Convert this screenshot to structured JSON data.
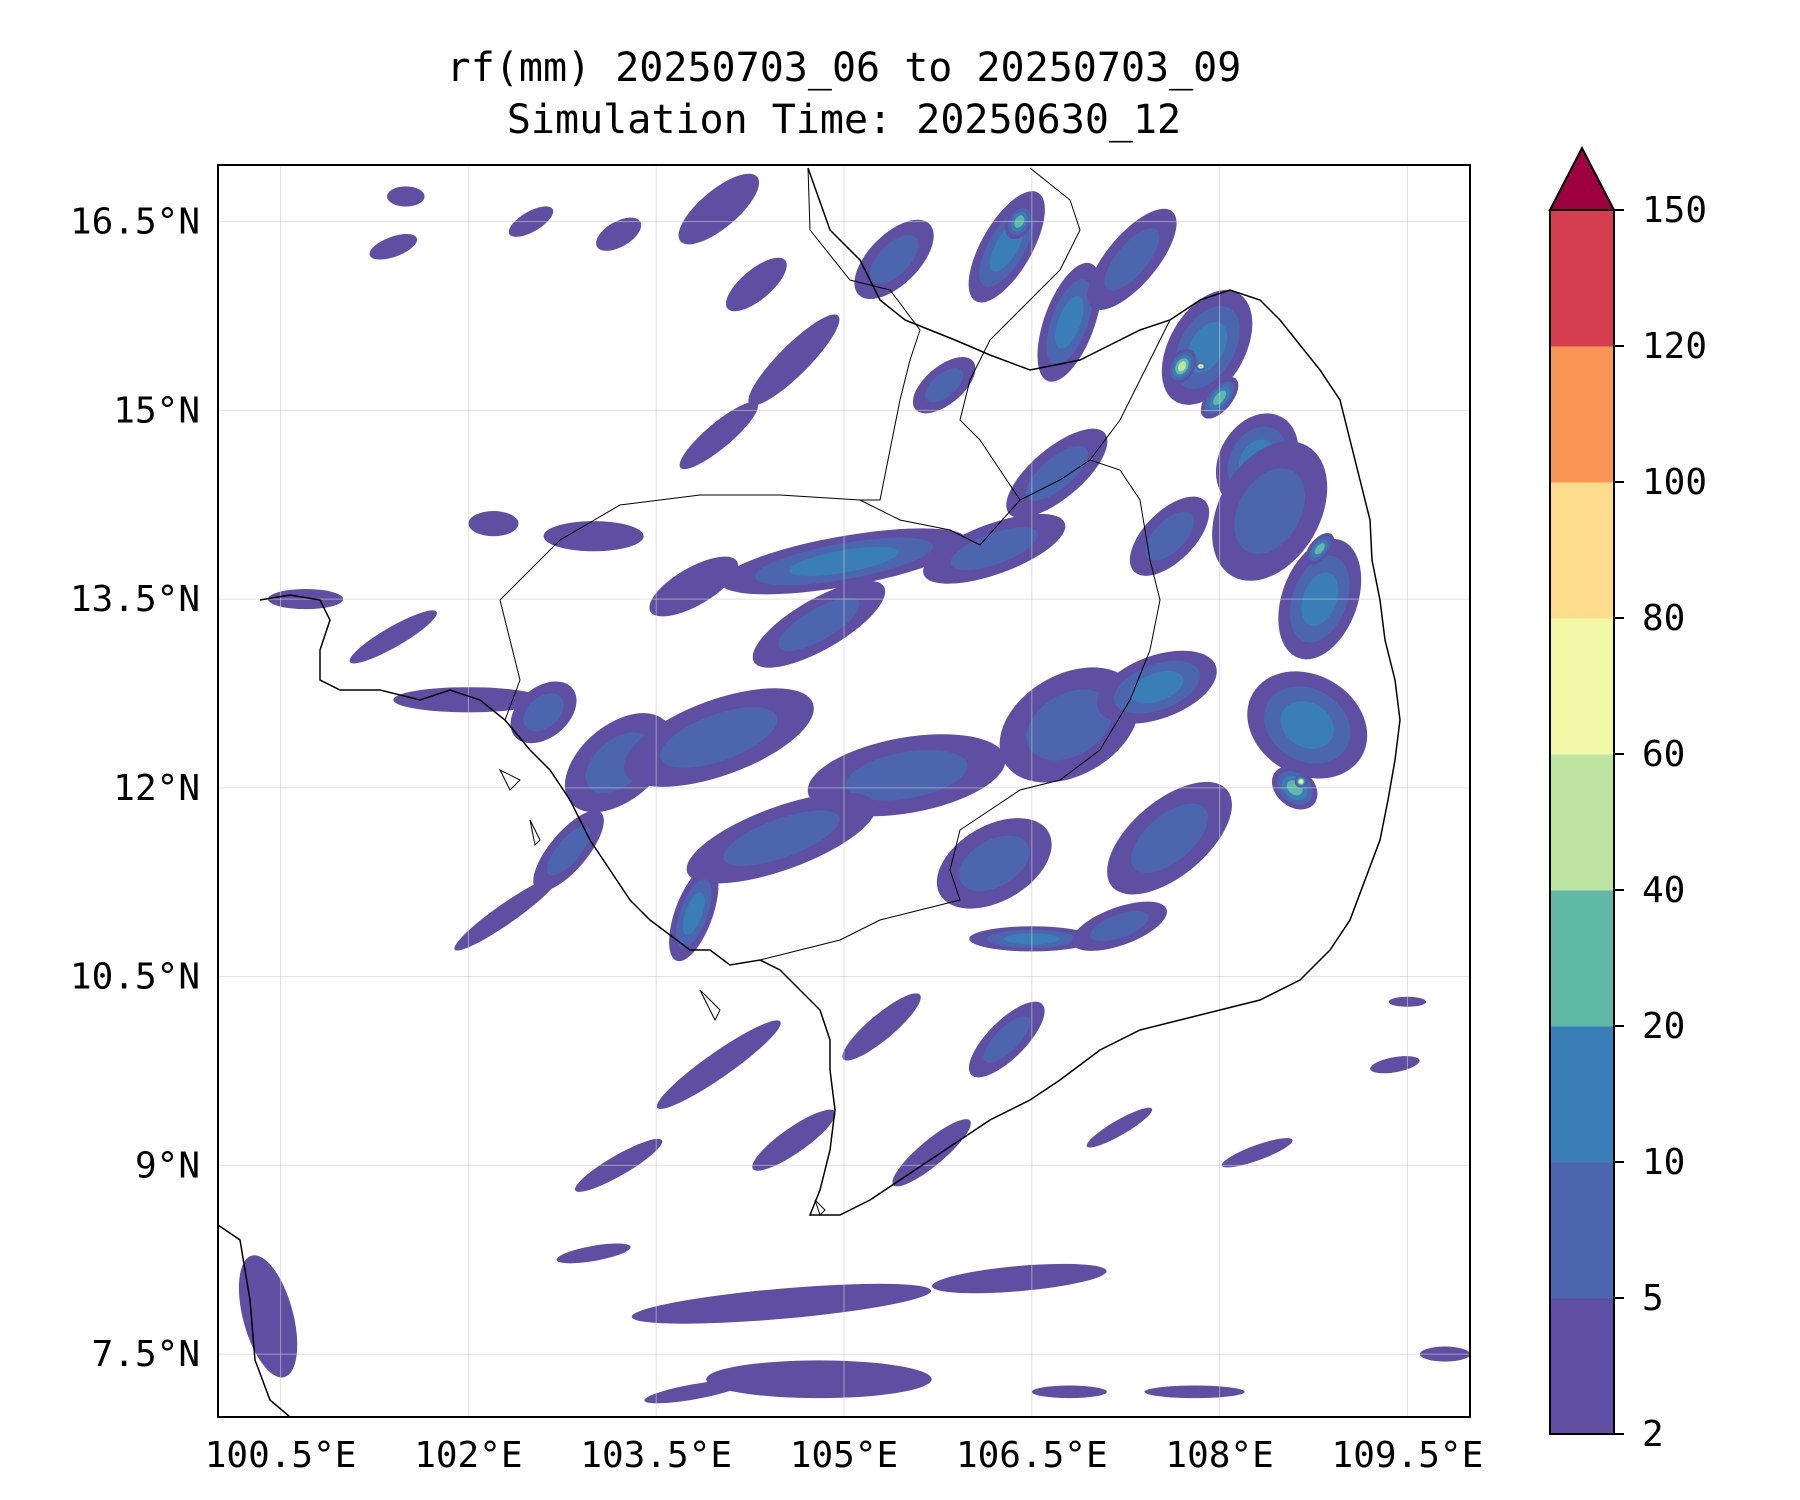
{
  "title": {
    "line1": "rf(mm) 20250703_06 to 20250703_09",
    "line2": "Simulation Time: 20250630_12"
  },
  "map": {
    "lon_range": [
      100.0,
      110.0
    ],
    "lat_range": [
      7.0,
      16.95
    ],
    "x_ticks": [
      {
        "value": 100.5,
        "label": "100.5°E"
      },
      {
        "value": 102.0,
        "label": "102°E"
      },
      {
        "value": 103.5,
        "label": "103.5°E"
      },
      {
        "value": 105.0,
        "label": "105°E"
      },
      {
        "value": 106.5,
        "label": "106.5°E"
      },
      {
        "value": 108.0,
        "label": "108°E"
      },
      {
        "value": 109.5,
        "label": "109.5°E"
      }
    ],
    "y_ticks": [
      {
        "value": 7.5,
        "label": "7.5°N"
      },
      {
        "value": 9.0,
        "label": "9°N"
      },
      {
        "value": 10.5,
        "label": "10.5°N"
      },
      {
        "value": 12.0,
        "label": "12°N"
      },
      {
        "value": 13.5,
        "label": "13.5°N"
      },
      {
        "value": 15.0,
        "label": "15°N"
      },
      {
        "value": 16.5,
        "label": "16.5°N"
      }
    ],
    "grid": true,
    "coastlines": true,
    "borders": true
  },
  "colorbar": {
    "levels": [
      2,
      5,
      10,
      20,
      40,
      60,
      80,
      100,
      120,
      150
    ],
    "labels": [
      "2",
      "5",
      "10",
      "20",
      "40",
      "60",
      "80",
      "100",
      "120",
      "150"
    ],
    "colors": [
      "#5e4fa2",
      "#4b65ae",
      "#3a7eb8",
      "#5fb9a6",
      "#bde4a0",
      "#f1f9a9",
      "#fddc8b",
      "#f99655",
      "#d53e4f"
    ],
    "extend_color": "#9e0142",
    "extend": "max"
  },
  "rain_cells": [
    {
      "lon": 101.5,
      "lat": 16.7,
      "level": 1,
      "rx": 0.15,
      "ry": 0.08,
      "rot": 0
    },
    {
      "lon": 101.4,
      "lat": 16.3,
      "level": 1,
      "rx": 0.2,
      "ry": 0.08,
      "rot": -20
    },
    {
      "lon": 102.5,
      "lat": 16.5,
      "level": 1,
      "rx": 0.2,
      "ry": 0.08,
      "rot": -30
    },
    {
      "lon": 103.2,
      "lat": 16.4,
      "level": 1,
      "rx": 0.2,
      "ry": 0.1,
      "rot": -30
    },
    {
      "lon": 104.0,
      "lat": 16.6,
      "level": 1,
      "rx": 0.4,
      "ry": 0.15,
      "rot": -40
    },
    {
      "lon": 104.3,
      "lat": 16.0,
      "level": 1,
      "rx": 0.3,
      "ry": 0.12,
      "rot": -40
    },
    {
      "lon": 104.6,
      "lat": 15.4,
      "level": 1,
      "rx": 0.5,
      "ry": 0.12,
      "rot": -45
    },
    {
      "lon": 104.0,
      "lat": 14.8,
      "level": 1,
      "rx": 0.4,
      "ry": 0.1,
      "rot": -40
    },
    {
      "lon": 105.4,
      "lat": 16.2,
      "level": 2,
      "rx": 0.4,
      "ry": 0.2,
      "rot": -45
    },
    {
      "lon": 105.8,
      "lat": 15.2,
      "level": 2,
      "rx": 0.3,
      "ry": 0.15,
      "rot": -40
    },
    {
      "lon": 106.3,
      "lat": 16.3,
      "level": 3,
      "rx": 0.5,
      "ry": 0.2,
      "rot": -60
    },
    {
      "lon": 106.4,
      "lat": 16.5,
      "level": 4,
      "rx": 0.15,
      "ry": 0.1,
      "rot": -60
    },
    {
      "lon": 106.8,
      "lat": 15.7,
      "level": 3,
      "rx": 0.5,
      "ry": 0.2,
      "rot": -70
    },
    {
      "lon": 107.3,
      "lat": 16.2,
      "level": 2,
      "rx": 0.5,
      "ry": 0.2,
      "rot": -50
    },
    {
      "lon": 107.9,
      "lat": 15.5,
      "level": 3,
      "rx": 0.5,
      "ry": 0.3,
      "rot": -60
    },
    {
      "lon": 107.7,
      "lat": 15.35,
      "level": 5,
      "rx": 0.15,
      "ry": 0.1,
      "rot": -60
    },
    {
      "lon": 107.85,
      "lat": 15.35,
      "level": 8,
      "rx": 0.04,
      "ry": 0.03,
      "rot": 0
    },
    {
      "lon": 108.0,
      "lat": 15.1,
      "level": 4,
      "rx": 0.2,
      "ry": 0.1,
      "rot": -50
    },
    {
      "lon": 108.3,
      "lat": 14.6,
      "level": 3,
      "rx": 0.4,
      "ry": 0.3,
      "rot": -60
    },
    {
      "lon": 108.4,
      "lat": 14.2,
      "level": 2,
      "rx": 0.6,
      "ry": 0.4,
      "rot": -60
    },
    {
      "lon": 108.8,
      "lat": 13.5,
      "level": 3,
      "rx": 0.5,
      "ry": 0.3,
      "rot": -70
    },
    {
      "lon": 108.8,
      "lat": 13.9,
      "level": 4,
      "rx": 0.15,
      "ry": 0.08,
      "rot": -50
    },
    {
      "lon": 107.6,
      "lat": 14.0,
      "level": 2,
      "rx": 0.4,
      "ry": 0.2,
      "rot": -45
    },
    {
      "lon": 106.7,
      "lat": 14.5,
      "level": 2,
      "rx": 0.5,
      "ry": 0.2,
      "rot": -40
    },
    {
      "lon": 105.0,
      "lat": 13.8,
      "level": 3,
      "rx": 1.0,
      "ry": 0.2,
      "rot": -10
    },
    {
      "lon": 106.2,
      "lat": 13.9,
      "level": 2,
      "rx": 0.6,
      "ry": 0.2,
      "rot": -20
    },
    {
      "lon": 104.8,
      "lat": 13.3,
      "level": 2,
      "rx": 0.6,
      "ry": 0.2,
      "rot": -30
    },
    {
      "lon": 103.8,
      "lat": 13.6,
      "level": 1,
      "rx": 0.4,
      "ry": 0.15,
      "rot": -30
    },
    {
      "lon": 102.2,
      "lat": 14.1,
      "level": 1,
      "rx": 0.2,
      "ry": 0.1,
      "rot": 0
    },
    {
      "lon": 103.0,
      "lat": 14.0,
      "level": 1,
      "rx": 0.4,
      "ry": 0.12,
      "rot": 0
    },
    {
      "lon": 100.7,
      "lat": 13.5,
      "level": 1,
      "rx": 0.3,
      "ry": 0.08,
      "rot": 0
    },
    {
      "lon": 101.4,
      "lat": 13.2,
      "level": 1,
      "rx": 0.4,
      "ry": 0.08,
      "rot": -30
    },
    {
      "lon": 102.0,
      "lat": 12.7,
      "level": 1,
      "rx": 0.6,
      "ry": 0.1,
      "rot": 0
    },
    {
      "lon": 102.6,
      "lat": 12.6,
      "level": 2,
      "rx": 0.3,
      "ry": 0.2,
      "rot": -40
    },
    {
      "lon": 103.2,
      "lat": 12.2,
      "level": 2,
      "rx": 0.5,
      "ry": 0.3,
      "rot": -40
    },
    {
      "lon": 104.0,
      "lat": 12.4,
      "level": 2,
      "rx": 0.8,
      "ry": 0.3,
      "rot": -20
    },
    {
      "lon": 105.5,
      "lat": 12.1,
      "level": 2,
      "rx": 0.8,
      "ry": 0.3,
      "rot": -10
    },
    {
      "lon": 106.8,
      "lat": 12.5,
      "level": 2,
      "rx": 0.6,
      "ry": 0.4,
      "rot": -30
    },
    {
      "lon": 107.5,
      "lat": 12.8,
      "level": 3,
      "rx": 0.5,
      "ry": 0.25,
      "rot": -20
    },
    {
      "lon": 108.7,
      "lat": 12.5,
      "level": 3,
      "rx": 0.4,
      "ry": 0.5,
      "rot": -60
    },
    {
      "lon": 108.6,
      "lat": 12.0,
      "level": 4,
      "rx": 0.15,
      "ry": 0.2,
      "rot": -50
    },
    {
      "lon": 108.65,
      "lat": 12.05,
      "level": 6,
      "rx": 0.05,
      "ry": 0.05,
      "rot": 0
    },
    {
      "lon": 107.6,
      "lat": 11.6,
      "level": 2,
      "rx": 0.6,
      "ry": 0.3,
      "rot": -40
    },
    {
      "lon": 106.2,
      "lat": 11.4,
      "level": 2,
      "rx": 0.5,
      "ry": 0.3,
      "rot": -30
    },
    {
      "lon": 104.5,
      "lat": 11.6,
      "level": 2,
      "rx": 0.8,
      "ry": 0.25,
      "rot": -20
    },
    {
      "lon": 103.8,
      "lat": 11.0,
      "level": 3,
      "rx": 0.4,
      "ry": 0.15,
      "rot": -70
    },
    {
      "lon": 102.8,
      "lat": 11.5,
      "level": 2,
      "rx": 0.4,
      "ry": 0.15,
      "rot": -50
    },
    {
      "lon": 102.3,
      "lat": 11.0,
      "level": 1,
      "rx": 0.5,
      "ry": 0.08,
      "rot": -35
    },
    {
      "lon": 106.5,
      "lat": 10.8,
      "level": 3,
      "rx": 0.5,
      "ry": 0.1,
      "rot": 0
    },
    {
      "lon": 107.2,
      "lat": 10.9,
      "level": 2,
      "rx": 0.4,
      "ry": 0.15,
      "rot": -20
    },
    {
      "lon": 106.3,
      "lat": 10.0,
      "level": 2,
      "rx": 0.4,
      "ry": 0.15,
      "rot": -45
    },
    {
      "lon": 105.3,
      "lat": 10.1,
      "level": 1,
      "rx": 0.4,
      "ry": 0.1,
      "rot": -40
    },
    {
      "lon": 104.0,
      "lat": 9.8,
      "level": 1,
      "rx": 0.6,
      "ry": 0.1,
      "rot": -35
    },
    {
      "lon": 104.6,
      "lat": 9.2,
      "level": 1,
      "rx": 0.4,
      "ry": 0.1,
      "rot": -35
    },
    {
      "lon": 103.2,
      "lat": 9.0,
      "level": 1,
      "rx": 0.4,
      "ry": 0.08,
      "rot": -30
    },
    {
      "lon": 105.7,
      "lat": 9.1,
      "level": 1,
      "rx": 0.4,
      "ry": 0.1,
      "rot": -40
    },
    {
      "lon": 104.5,
      "lat": 7.9,
      "level": 1,
      "rx": 1.2,
      "ry": 0.12,
      "rot": -5
    },
    {
      "lon": 106.4,
      "lat": 8.1,
      "level": 1,
      "rx": 0.7,
      "ry": 0.1,
      "rot": -5
    },
    {
      "lon": 104.8,
      "lat": 7.3,
      "level": 1,
      "rx": 0.9,
      "ry": 0.15,
      "rot": 0
    },
    {
      "lon": 103.8,
      "lat": 7.2,
      "level": 1,
      "rx": 0.4,
      "ry": 0.06,
      "rot": -10
    },
    {
      "lon": 107.2,
      "lat": 9.3,
      "level": 1,
      "rx": 0.3,
      "ry": 0.06,
      "rot": -30
    },
    {
      "lon": 108.3,
      "lat": 9.1,
      "level": 1,
      "rx": 0.3,
      "ry": 0.06,
      "rot": -20
    },
    {
      "lon": 109.4,
      "lat": 9.8,
      "level": 1,
      "rx": 0.2,
      "ry": 0.06,
      "rot": -10
    },
    {
      "lon": 109.5,
      "lat": 10.3,
      "level": 1,
      "rx": 0.15,
      "ry": 0.04,
      "rot": 0
    },
    {
      "lon": 109.8,
      "lat": 7.5,
      "level": 1,
      "rx": 0.2,
      "ry": 0.06,
      "rot": 0
    },
    {
      "lon": 107.8,
      "lat": 7.2,
      "level": 1,
      "rx": 0.4,
      "ry": 0.05,
      "rot": 0
    },
    {
      "lon": 106.8,
      "lat": 7.2,
      "level": 1,
      "rx": 0.3,
      "ry": 0.05,
      "rot": 0
    },
    {
      "lon": 100.4,
      "lat": 7.8,
      "level": 1,
      "rx": 0.2,
      "ry": 0.5,
      "rot": -15
    },
    {
      "lon": 103.0,
      "lat": 8.3,
      "level": 1,
      "rx": 0.3,
      "ry": 0.06,
      "rot": -10
    }
  ]
}
